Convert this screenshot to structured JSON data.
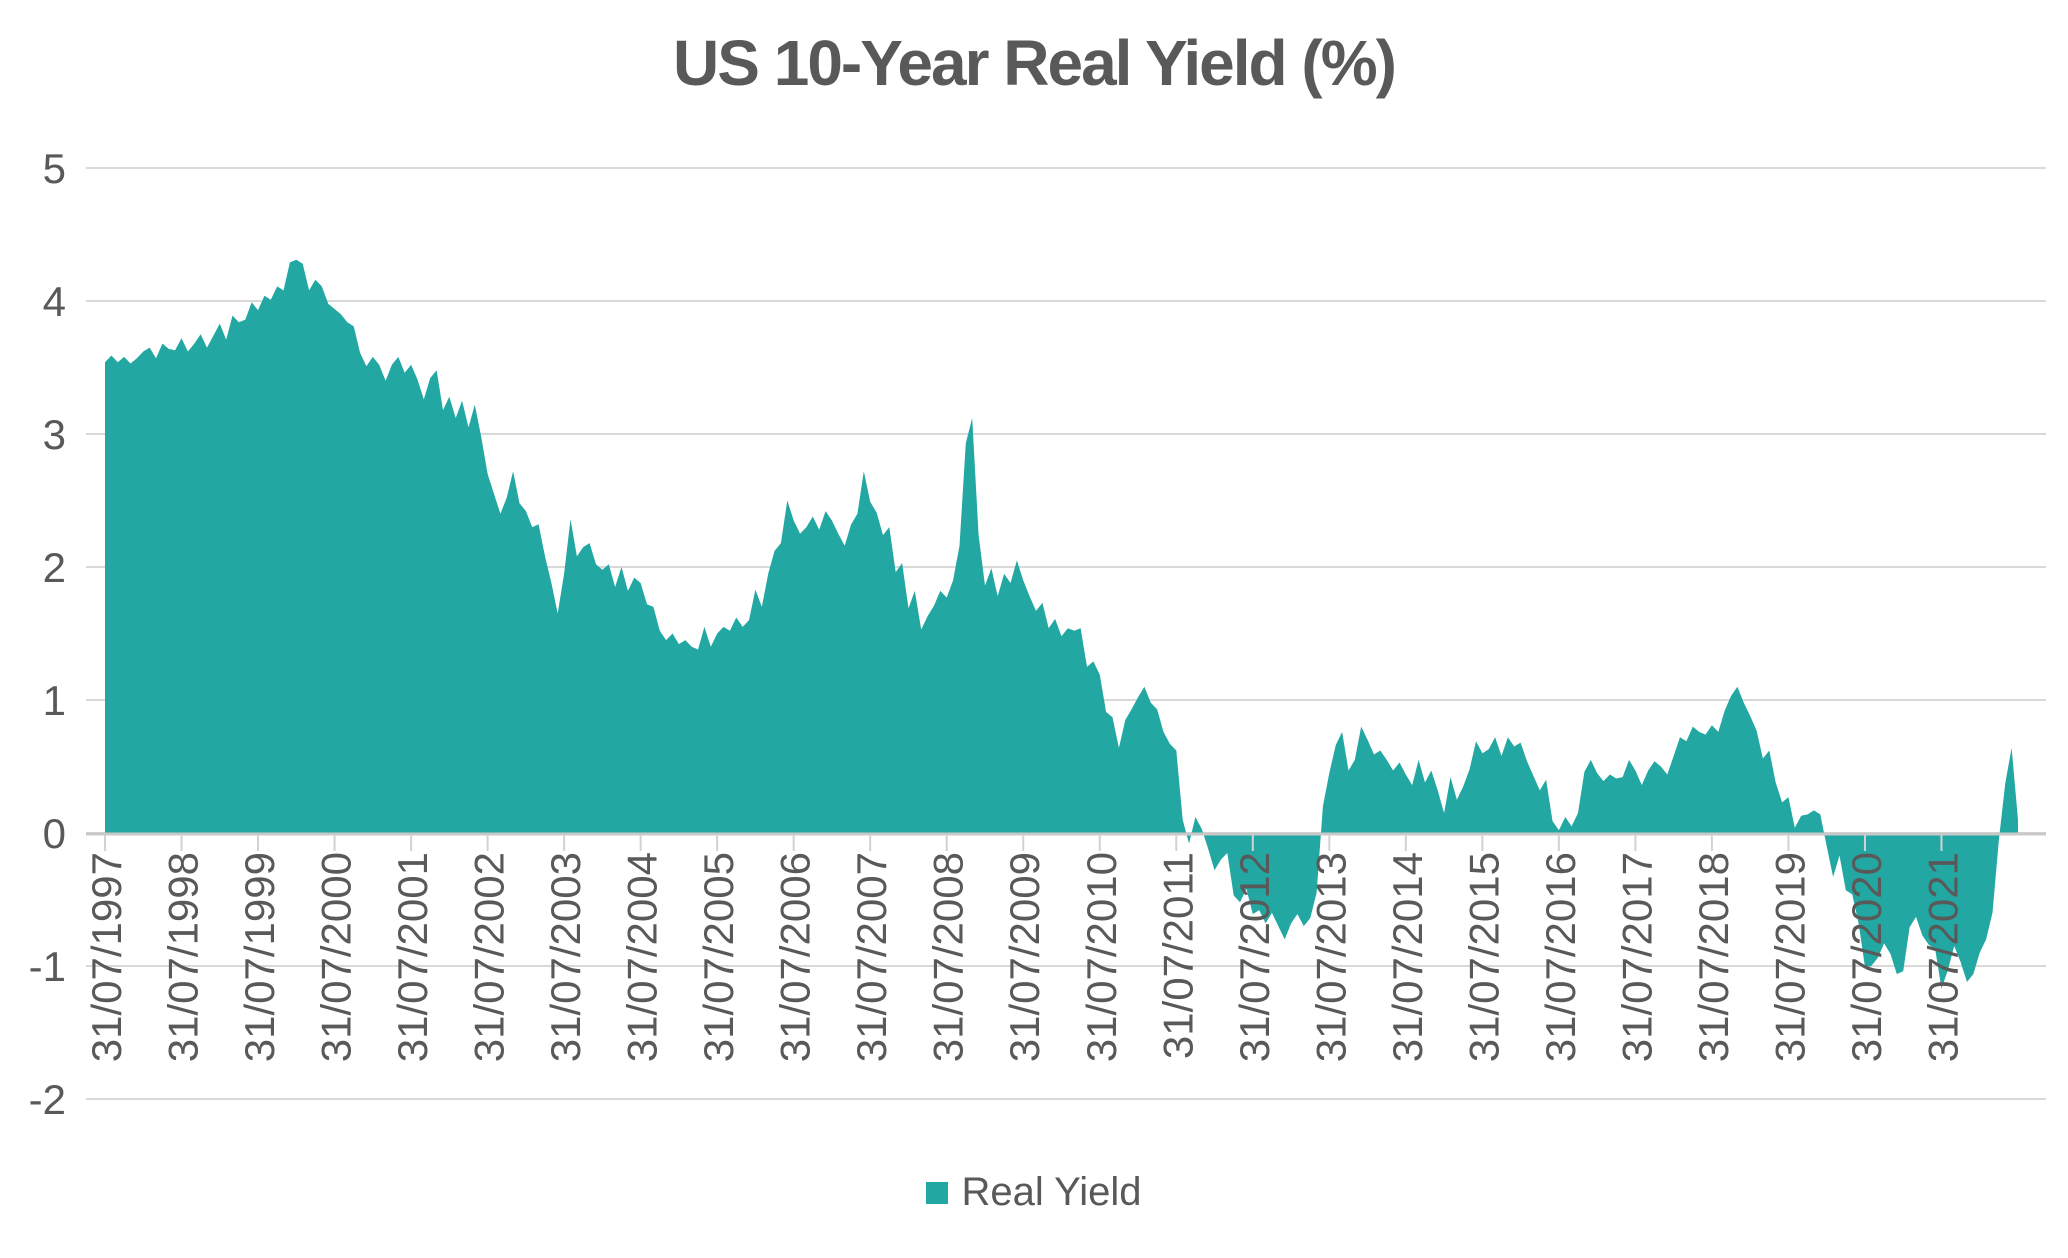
{
  "chart_data": {
    "type": "area",
    "title": "US 10-Year Real Yield (%)",
    "xlabel": "",
    "ylabel": "",
    "ylim": [
      -2,
      5
    ],
    "y_ticks": [
      5,
      4,
      3,
      2,
      1,
      0,
      -1,
      -2
    ],
    "grid": true,
    "legend_position": "bottom",
    "x_tick_labels": [
      "31/07/1997",
      "31/07/1998",
      "31/07/1999",
      "31/07/2000",
      "31/07/2001",
      "31/07/2002",
      "31/07/2003",
      "31/07/2004",
      "31/07/2005",
      "31/07/2006",
      "31/07/2007",
      "31/07/2008",
      "31/07/2009",
      "31/07/2010",
      "31/07/2011",
      "31/07/2012",
      "31/07/2013",
      "31/07/2014",
      "31/07/2015",
      "31/07/2016",
      "31/07/2017",
      "31/07/2018",
      "31/07/2019",
      "31/07/2020",
      "31/07/2021"
    ],
    "x_start": "31/07/1997",
    "x_end": "31/07/2022",
    "frequency": "monthly",
    "series": [
      {
        "name": "Real Yield",
        "color": "#23a7a2",
        "values": [
          3.54,
          3.59,
          3.54,
          3.58,
          3.53,
          3.57,
          3.62,
          3.65,
          3.57,
          3.68,
          3.64,
          3.63,
          3.72,
          3.62,
          3.68,
          3.75,
          3.65,
          3.74,
          3.83,
          3.71,
          3.89,
          3.84,
          3.86,
          3.99,
          3.93,
          4.04,
          4.01,
          4.11,
          4.08,
          4.29,
          4.31,
          4.28,
          4.08,
          4.16,
          4.11,
          3.98,
          3.94,
          3.9,
          3.84,
          3.81,
          3.61,
          3.51,
          3.58,
          3.52,
          3.4,
          3.52,
          3.58,
          3.46,
          3.52,
          3.41,
          3.26,
          3.42,
          3.48,
          3.18,
          3.28,
          3.12,
          3.25,
          3.05,
          3.22,
          2.98,
          2.7,
          2.55,
          2.4,
          2.52,
          2.72,
          2.48,
          2.42,
          2.3,
          2.32,
          2.08,
          1.88,
          1.65,
          1.95,
          2.36,
          2.08,
          2.15,
          2.18,
          2.02,
          1.98,
          2.02,
          1.85,
          2.0,
          1.82,
          1.92,
          1.88,
          1.72,
          1.7,
          1.52,
          1.45,
          1.5,
          1.42,
          1.45,
          1.4,
          1.38,
          1.55,
          1.4,
          1.5,
          1.55,
          1.52,
          1.62,
          1.55,
          1.6,
          1.83,
          1.7,
          1.95,
          2.12,
          2.18,
          2.5,
          2.35,
          2.25,
          2.3,
          2.38,
          2.28,
          2.42,
          2.35,
          2.25,
          2.16,
          2.32,
          2.4,
          2.72,
          2.49,
          2.41,
          2.24,
          2.3,
          1.96,
          2.03,
          1.69,
          1.82,
          1.53,
          1.63,
          1.71,
          1.82,
          1.77,
          1.9,
          2.16,
          2.93,
          3.12,
          2.24,
          1.86,
          1.99,
          1.78,
          1.95,
          1.88,
          2.05,
          1.9,
          1.78,
          1.67,
          1.73,
          1.54,
          1.61,
          1.48,
          1.54,
          1.52,
          1.54,
          1.25,
          1.29,
          1.19,
          0.91,
          0.87,
          0.64,
          0.85,
          0.93,
          1.02,
          1.1,
          0.98,
          0.93,
          0.76,
          0.67,
          0.62,
          0.1,
          -0.08,
          0.12,
          0.03,
          -0.12,
          -0.28,
          -0.2,
          -0.15,
          -0.47,
          -0.52,
          -0.42,
          -0.61,
          -0.58,
          -0.68,
          -0.6,
          -0.7,
          -0.8,
          -0.68,
          -0.61,
          -0.7,
          -0.64,
          -0.45,
          0.2,
          0.45,
          0.66,
          0.76,
          0.47,
          0.55,
          0.8,
          0.7,
          0.59,
          0.62,
          0.55,
          0.47,
          0.53,
          0.44,
          0.36,
          0.55,
          0.38,
          0.47,
          0.32,
          0.15,
          0.42,
          0.25,
          0.35,
          0.48,
          0.69,
          0.6,
          0.63,
          0.72,
          0.58,
          0.72,
          0.65,
          0.68,
          0.54,
          0.43,
          0.32,
          0.4,
          0.09,
          0.02,
          0.12,
          0.05,
          0.15,
          0.46,
          0.55,
          0.45,
          0.39,
          0.44,
          0.41,
          0.42,
          0.55,
          0.47,
          0.36,
          0.47,
          0.54,
          0.5,
          0.44,
          0.58,
          0.72,
          0.69,
          0.8,
          0.76,
          0.74,
          0.81,
          0.76,
          0.92,
          1.03,
          1.1,
          0.98,
          0.88,
          0.77,
          0.56,
          0.62,
          0.38,
          0.23,
          0.27,
          0.04,
          0.13,
          0.14,
          0.17,
          0.14,
          -0.1,
          -0.33,
          -0.17,
          -0.43,
          -0.46,
          -0.68,
          -1.01,
          -1.0,
          -0.94,
          -0.83,
          -0.91,
          -1.06,
          -1.04,
          -0.71,
          -0.63,
          -0.77,
          -0.84,
          -0.87,
          -1.17,
          -1.03,
          -0.85,
          -0.97,
          -1.12,
          -1.06,
          -0.9,
          -0.8,
          -0.6,
          -0.05,
          0.37,
          0.64,
          0.1
        ]
      }
    ],
    "colors": {
      "area": "#23a7a2",
      "gridline": "#d9d9d9",
      "axis_line": "#c8c8c8",
      "tick": "#d2d2d2",
      "text": "#595959",
      "background": "#ffffff"
    }
  }
}
